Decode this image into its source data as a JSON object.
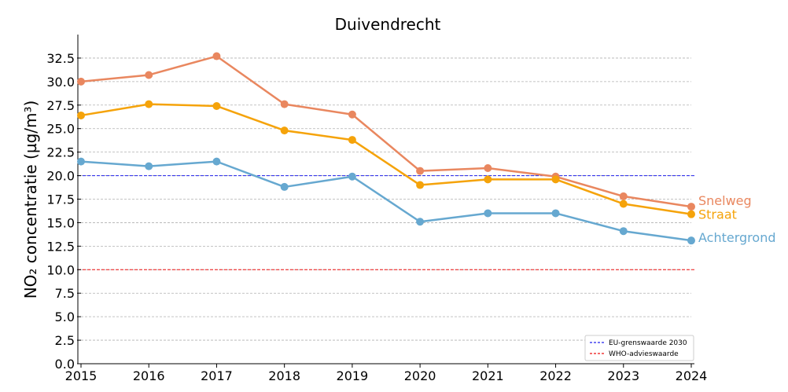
{
  "chart_data": {
    "type": "line",
    "title": "Duivendrecht",
    "xlabel": "",
    "ylabel": "NO₂ concentratie (µg/m³)",
    "x": [
      2015,
      2016,
      2017,
      2018,
      2019,
      2020,
      2021,
      2022,
      2023,
      2024
    ],
    "xlim": [
      2015,
      2024
    ],
    "ylim": [
      0,
      35
    ],
    "yticks": [
      "0.0",
      "2.5",
      "5.0",
      "7.5",
      "10.0",
      "12.5",
      "15.0",
      "17.5",
      "20.0",
      "22.5",
      "25.0",
      "27.5",
      "30.0",
      "32.5"
    ],
    "grid": "horizontal dashed",
    "series": [
      {
        "name": "Snelweg",
        "color": "#e9875f",
        "values": [
          30.0,
          30.7,
          32.7,
          27.6,
          26.5,
          20.5,
          20.8,
          19.9,
          17.8,
          16.7
        ]
      },
      {
        "name": "Straat",
        "color": "#f5a30a",
        "values": [
          26.4,
          27.6,
          27.4,
          24.8,
          23.8,
          19.0,
          19.6,
          19.6,
          17.0,
          15.9
        ]
      },
      {
        "name": "Achtergrond",
        "color": "#66a8d0",
        "values": [
          21.5,
          21.0,
          21.5,
          18.8,
          19.9,
          15.1,
          16.0,
          16.0,
          14.1,
          13.1
        ]
      }
    ],
    "reference_lines": [
      {
        "name": "EU-grenswaarde 2030",
        "value": 20,
        "color": "#2222ee"
      },
      {
        "name": "WHO-advieswaarde",
        "value": 10,
        "color": "#ee1111"
      }
    ],
    "legend": "bottom-right"
  }
}
